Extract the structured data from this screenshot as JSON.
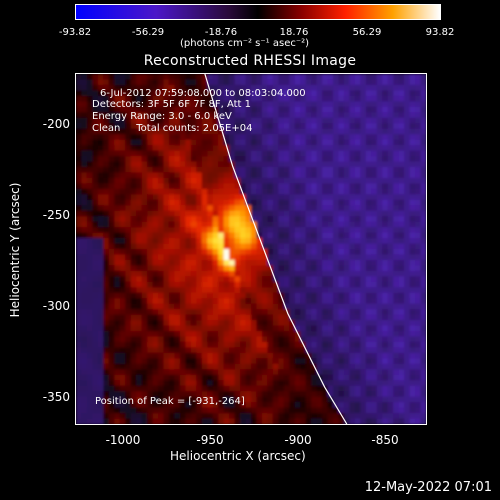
{
  "colorbar": {
    "min": -93.82,
    "max": 93.82,
    "tick_labels": [
      "-93.82",
      "-56.29",
      "-18.76",
      "18.76",
      "56.29",
      "93.82"
    ],
    "units_label": "(photons cm⁻² s⁻¹ asec⁻²)"
  },
  "chart_data": {
    "type": "heatmap",
    "title": "Reconstructed RHESSI Image",
    "xlabel": "Heliocentric X (arcsec)",
    "ylabel": "Heliocentric Y (arcsec)",
    "xlim": [
      -1020,
      -830
    ],
    "ylim": [
      -370,
      -180
    ],
    "x_ticks": [
      "-1000",
      "-950",
      "-900",
      "-850"
    ],
    "y_ticks": [
      "-200",
      "-250",
      "-300",
      "-350"
    ],
    "x_tick_values": [
      -1000,
      -950,
      -900,
      -850
    ],
    "y_tick_values": [
      -200,
      -250,
      -300,
      -350
    ],
    "peak": {
      "x": -931,
      "y": -264,
      "value": 93.82
    },
    "limb_curve": [
      [
        -950,
        -180
      ],
      [
        -935,
        -230
      ],
      [
        -920,
        -270
      ],
      [
        -905,
        -310
      ],
      [
        -885,
        -350
      ],
      [
        -873,
        -370
      ]
    ],
    "annotations": {
      "time_range": "6-Jul-2012 07:59:08.000 to 08:03:04.000",
      "detectors": "Detectors: 3F 5F 6F 7F 8F, Att 1",
      "energy": "Energy Range: 3.0 - 6.0 keV",
      "clean": "Clean     Total counts: 2.05E+04",
      "peak_label": "Position of Peak = [-931,-264]"
    }
  },
  "footer": {
    "datestamp": "12-May-2022 07:01"
  }
}
